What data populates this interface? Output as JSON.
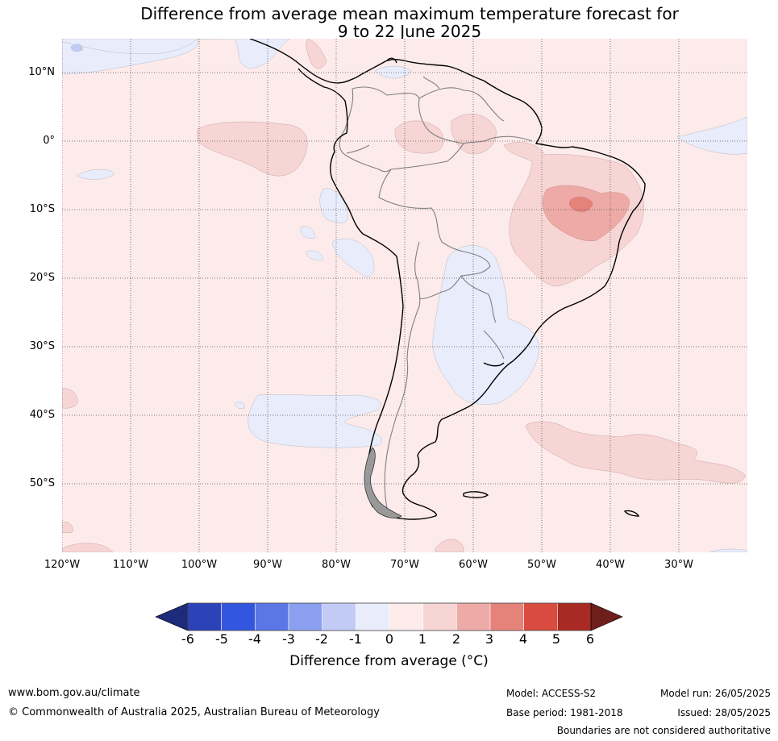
{
  "title": {
    "line1": "Difference from average mean maximum temperature forecast for",
    "line2": "9 to 22 June 2025"
  },
  "map": {
    "lat_labels": [
      "10°N",
      "0°",
      "10°S",
      "20°S",
      "30°S",
      "40°S",
      "50°S"
    ],
    "lon_labels": [
      "120°W",
      "110°W",
      "100°W",
      "90°W",
      "80°W",
      "70°W",
      "60°W",
      "50°W",
      "40°W",
      "30°W"
    ],
    "extent": {
      "lon_min": -120,
      "lon_max": -20,
      "lat_min": -60,
      "lat_max": 15
    }
  },
  "colorbar": {
    "ticks": [
      "-6",
      "-5",
      "-4",
      "-3",
      "-2",
      "-1",
      "0",
      "1",
      "2",
      "3",
      "4",
      "5",
      "6"
    ],
    "colors": [
      "#1e2a7a",
      "#2c42b8",
      "#3356e0",
      "#5b77e6",
      "#8a9ff0",
      "#c1cbf5",
      "#e8ecfb",
      "#fcebea",
      "#f6d5d4",
      "#edaaa6",
      "#e5827a",
      "#d94b3e",
      "#a82a22",
      "#6e1f1c"
    ],
    "label": "Difference from average (°C)"
  },
  "footer": {
    "website": "www.bom.gov.au/climate",
    "copyright": "© Commonwealth of Australia 2025, Australian Bureau of Meteorology",
    "model": "Model: ACCESS-S2",
    "base_period": "Base period: 1981-2018",
    "model_run": "Model run: 26/05/2025",
    "issued": "Issued: 28/05/2025",
    "disclaimer": "Boundaries are not considered authoritative"
  }
}
